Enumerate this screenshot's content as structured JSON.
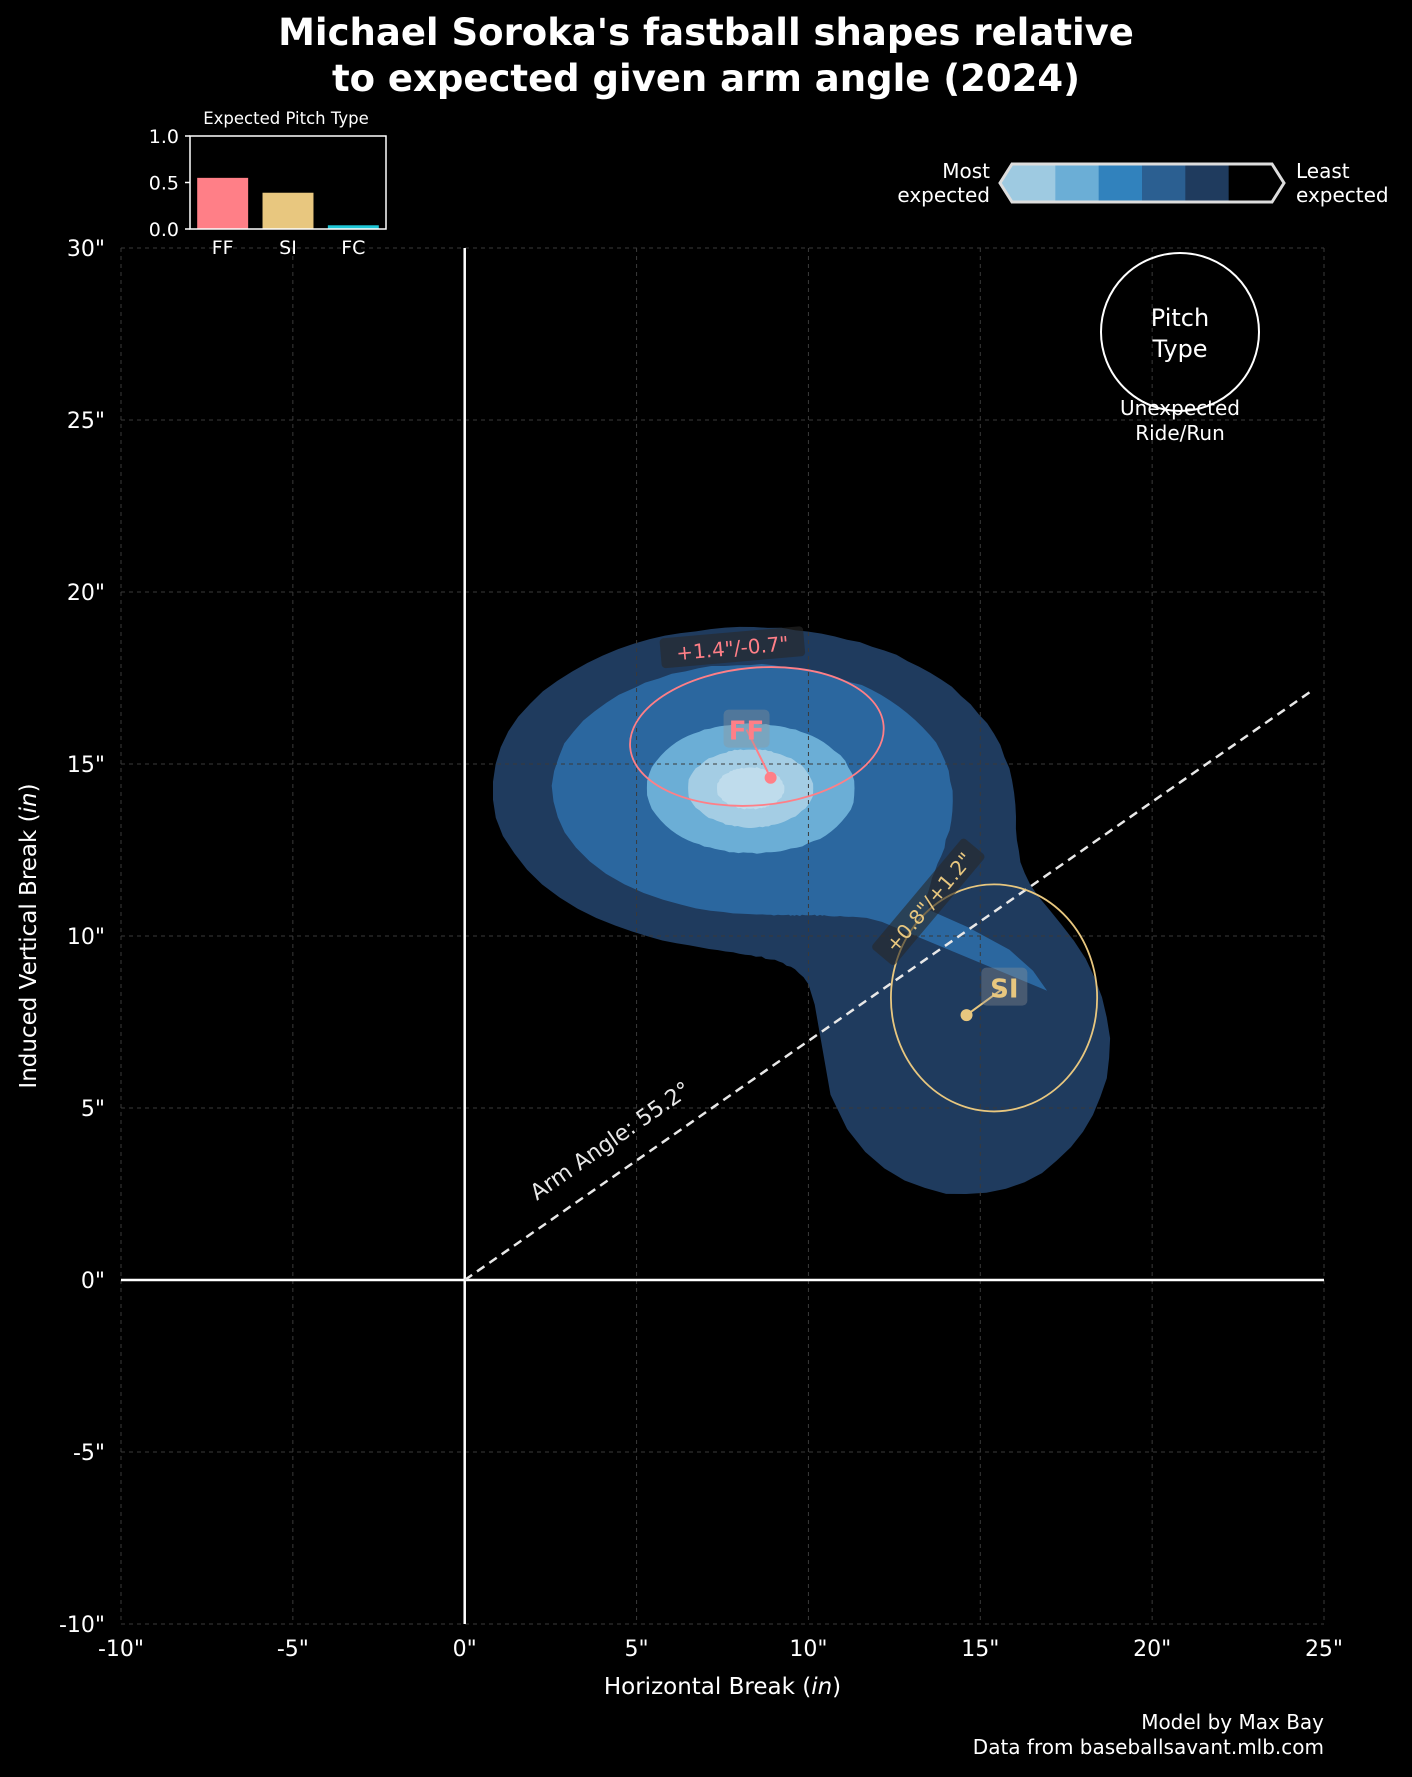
{
  "title": {
    "line1": "Michael Soroka's fastball shapes relative",
    "line2": "to expected given arm angle (2024)"
  },
  "credit": {
    "line1": "Model by Max Bay",
    "line2": "Data from baseballsavant.mlb.com"
  },
  "colors": {
    "background": "#000000",
    "FF": "#ff7f87",
    "SI": "#e8c77f",
    "FC": "#1fc8d8",
    "contour_levels": [
      "#bfdcec",
      "#a4cde4",
      "#6baed6",
      "#3182bd",
      "#2b679f",
      "#1f3b5e"
    ]
  },
  "chart_data": [
    {
      "type": "scatter",
      "title": "Michael Soroka's fastball shapes relative to expected given arm angle (2024)",
      "xlabel": "Horizontal Break (in)",
      "ylabel": "Induced Vertical Break (in)",
      "xlim": [
        -10,
        25
      ],
      "ylim": [
        -10,
        30
      ],
      "x_ticks": [
        -10,
        -5,
        0,
        5,
        10,
        15,
        20,
        25
      ],
      "y_ticks": [
        -10,
        -5,
        0,
        5,
        10,
        15,
        20,
        25,
        30
      ],
      "x_tick_labels": [
        "-10\"",
        "-5\"",
        "0\"",
        "5\"",
        "10\"",
        "15\"",
        "20\"",
        "25\""
      ],
      "y_tick_labels": [
        "-10\"",
        "-5\"",
        "0\"",
        "5\"",
        "10\"",
        "15\"",
        "20\"",
        "25\"",
        "30\""
      ],
      "grid": true,
      "arm_angle": {
        "label": "Arm Angle: 55.2°",
        "degrees": 55.2
      },
      "pitches": [
        {
          "type": "FF",
          "x": 8.9,
          "y": 14.6,
          "label_x": 8.2,
          "label_y": 16.0,
          "ellipse": {
            "cx": 8.5,
            "cy": 15.8,
            "rx": 3.7,
            "ry": 2.0,
            "rotation": -5
          },
          "diff_label": "+1.4\"/-0.7\""
        },
        {
          "type": "SI",
          "x": 14.6,
          "y": 7.7,
          "label_x": 15.7,
          "label_y": 8.5,
          "ellipse": {
            "cx": 15.4,
            "cy": 8.2,
            "rx": 3.0,
            "ry": 3.3,
            "rotation": 0
          },
          "diff_label": "+0.8\"/+1.2\""
        }
      ],
      "legend": {
        "circle_label": "Pitch Type",
        "circle_caption": "Unexpected Ride/Run",
        "colorbar_left": "Most expected",
        "colorbar_right": "Least expected",
        "colorbar_colors": [
          "#9ecae1",
          "#6baed6",
          "#3182bd",
          "#2b5f91",
          "#1f3b5e",
          "#000000"
        ]
      }
    },
    {
      "type": "bar",
      "title": "Expected Pitch Type",
      "categories": [
        "FF",
        "SI",
        "FC"
      ],
      "values": [
        0.55,
        0.39,
        0.04
      ],
      "ylim": [
        0,
        1
      ],
      "y_ticks": [
        0,
        0.5,
        1
      ],
      "y_tick_labels": [
        "0.0",
        "0.5",
        "1.0"
      ]
    }
  ]
}
